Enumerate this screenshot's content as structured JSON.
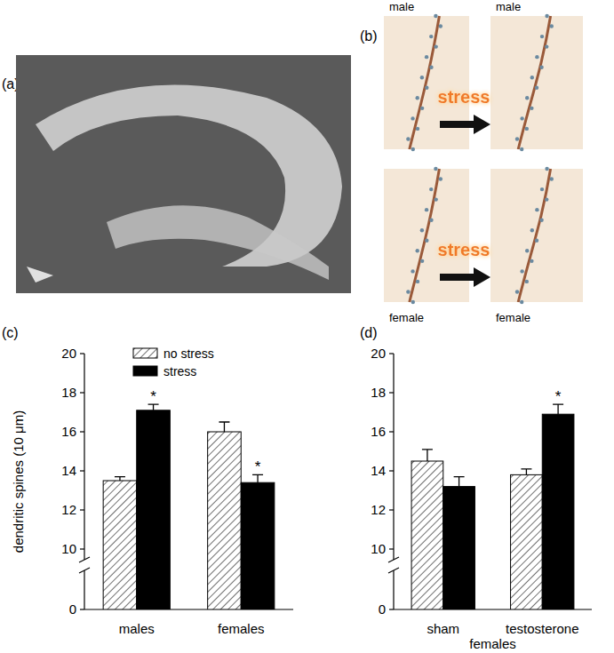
{
  "panel_labels": [
    "(a)",
    "(b)",
    "(c)",
    "(d)"
  ],
  "micrographs": {
    "rows": [
      {
        "before": "male",
        "after": "male",
        "arrow": "stress"
      },
      {
        "before": "female",
        "after": "female",
        "arrow": "stress"
      }
    ]
  },
  "chart_data": [
    {
      "type": "bar",
      "categories": [
        "males",
        "females"
      ],
      "ylabel": "dendritic spines (10 μm)",
      "ylim": [
        0,
        20
      ],
      "ybreak": [
        0,
        10
      ],
      "yticks": [
        0,
        10,
        12,
        14,
        16,
        18,
        20
      ],
      "grid": false,
      "legend": "upper left",
      "series": [
        {
          "name": "no stress",
          "color": "#ffffff",
          "values": [
            13.5,
            16.0
          ],
          "errors": [
            0.2,
            0.5
          ]
        },
        {
          "name": "stress",
          "color": "#000000",
          "values": [
            17.1,
            13.4
          ],
          "errors": [
            0.3,
            0.4
          ],
          "labels": [
            "*",
            "*"
          ]
        }
      ]
    },
    {
      "type": "bar",
      "categories": [
        "sham",
        "testosterone"
      ],
      "xlabel": "females",
      "ylim": [
        0,
        20
      ],
      "ybreak": [
        0,
        10
      ],
      "yticks": [
        0,
        10,
        12,
        14,
        16,
        18,
        20
      ],
      "grid": false,
      "series": [
        {
          "name": "no stress",
          "color": "#ffffff",
          "values": [
            14.5,
            13.8
          ],
          "errors": [
            0.6,
            0.3
          ]
        },
        {
          "name": "stress",
          "color": "#000000",
          "values": [
            13.2,
            16.9
          ],
          "errors": [
            0.5,
            0.5
          ],
          "labels": [
            null,
            "*"
          ]
        }
      ]
    }
  ]
}
